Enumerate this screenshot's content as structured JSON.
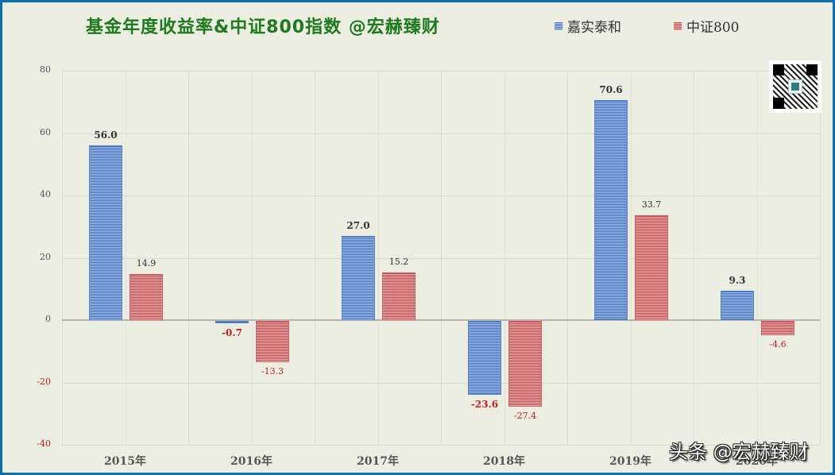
{
  "chart_data": {
    "type": "bar",
    "title": "基金年度收益率&中证800指数 @宏赫臻财",
    "categories": [
      "2015年",
      "2016年",
      "2017年",
      "2018年",
      "2019年",
      "2020年"
    ],
    "series": [
      {
        "name": "嘉实泰和",
        "color": "#4a78c6",
        "values": [
          56.0,
          -0.7,
          27.0,
          -23.6,
          70.6,
          9.3
        ]
      },
      {
        "name": "中证800",
        "color": "#d14f52",
        "values": [
          14.9,
          -13.3,
          15.2,
          -27.4,
          33.7,
          -4.6
        ]
      }
    ],
    "data_labels": {
      "嘉实泰和": [
        "56.0",
        "-0.7",
        "27.0",
        "-23.6",
        "70.6",
        "9.3"
      ],
      "中证800": [
        "14.9",
        "-13.3",
        "15.2",
        "-27.4",
        "33.7",
        "-4.6"
      ]
    },
    "xlabel": "",
    "ylabel": "",
    "ylim": [
      -40,
      80
    ],
    "yticks": [
      "80",
      "60",
      "40",
      "20",
      "0",
      "-20",
      "-40"
    ],
    "grid": true,
    "legend_position": "top-right"
  },
  "legend": [
    {
      "label": "嘉实泰和"
    },
    {
      "label": "中证800"
    }
  ],
  "watermark": "头条 @宏赫臻财",
  "qr_code": "qr-code-icon"
}
